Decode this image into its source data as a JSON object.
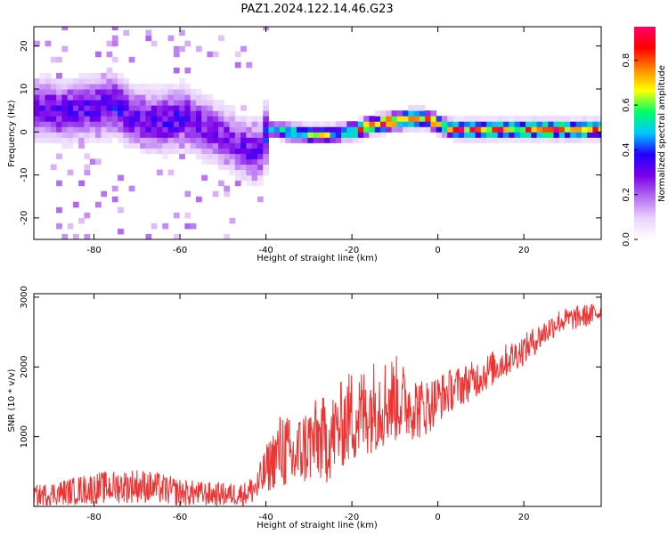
{
  "figure": {
    "title": "PAZ1.2024.122.14.46.G23"
  },
  "chart_data": [
    {
      "type": "heatmap",
      "title": "",
      "xlabel": "Height of straight line (km)",
      "ylabel": "Frequency (Hz)",
      "xlim": [
        -94,
        38
      ],
      "ylim": [
        -25,
        24.5
      ],
      "xticks": [
        -80,
        -60,
        -40,
        -20,
        0,
        20
      ],
      "yticks": [
        -20,
        -10,
        0,
        10,
        20
      ],
      "colorbar": {
        "label": "Normalized spectral amplitude",
        "range": [
          0,
          0.95
        ],
        "ticks": [
          0.0,
          0.2,
          0.4,
          0.6,
          0.8
        ],
        "colormap": [
          "#ffffff",
          "#e9d2fb",
          "#b46cf2",
          "#7a00e6",
          "#2200ff",
          "#00c8ff",
          "#00ff66",
          "#ffff00",
          "#ff8800",
          "#ff0000",
          "#ff0066"
        ]
      },
      "ridge": {
        "x": [
          -93,
          -88,
          -84,
          -80,
          -76,
          -72,
          -68,
          -64,
          -60,
          -56,
          -52,
          -48,
          -45,
          -42,
          -40,
          -36,
          -32,
          -28,
          -25,
          -22,
          -19,
          -16,
          -13,
          -10,
          -7,
          -4,
          -2,
          0,
          3,
          6,
          10,
          14,
          18,
          22,
          26,
          30,
          34,
          38
        ],
        "freq": [
          5,
          4,
          5,
          5,
          6,
          3,
          2,
          2,
          3,
          1,
          -1,
          -3,
          -5,
          -5,
          0,
          -0.5,
          -1,
          -1.2,
          -1,
          -0.5,
          0,
          1,
          1.5,
          2,
          2.5,
          2.5,
          2,
          1,
          0,
          0,
          0,
          0,
          0,
          0,
          0,
          0,
          0,
          0
        ],
        "amplitude": [
          0.28,
          0.32,
          0.3,
          0.33,
          0.34,
          0.3,
          0.3,
          0.33,
          0.32,
          0.28,
          0.26,
          0.27,
          0.3,
          0.27,
          0.4,
          0.5,
          0.6,
          0.65,
          0.55,
          0.55,
          0.7,
          0.75,
          0.85,
          0.8,
          0.8,
          0.8,
          0.7,
          0.7,
          0.75,
          0.8,
          0.82,
          0.78,
          0.75,
          0.8,
          0.85,
          0.82,
          0.8,
          0.75
        ]
      }
    },
    {
      "type": "line",
      "title": "",
      "xlabel": "Height of straight line (km)",
      "ylabel": "SNR (10 * v/v)",
      "xlim": [
        -94,
        38
      ],
      "ylim": [
        0,
        3050
      ],
      "xticks": [
        -80,
        -60,
        -40,
        -20,
        0,
        20
      ],
      "yticks": [
        1000,
        2000,
        3000
      ],
      "series": [
        {
          "color": "#ee3333",
          "x": [
            -94,
            -90,
            -85,
            -80,
            -75,
            -70,
            -65,
            -60,
            -55,
            -50,
            -45,
            -42,
            -40,
            -38,
            -36,
            -34,
            -32,
            -30,
            -28,
            -26,
            -24,
            -22,
            -20,
            -18,
            -16,
            -14,
            -12,
            -10,
            -8,
            -6,
            -4,
            -2,
            0,
            4,
            8,
            12,
            16,
            20,
            24,
            28,
            32,
            36,
            38
          ],
          "y": [
            150,
            180,
            220,
            260,
            280,
            300,
            260,
            200,
            180,
            170,
            180,
            280,
            520,
            700,
            850,
            650,
            800,
            900,
            950,
            950,
            1050,
            1200,
            1300,
            1300,
            1400,
            1500,
            1500,
            1550,
            1500,
            1450,
            1400,
            1450,
            1550,
            1700,
            1800,
            1950,
            2100,
            2250,
            2450,
            2650,
            2700,
            2750,
            2800
          ],
          "spread": [
            150,
            170,
            200,
            230,
            240,
            250,
            230,
            200,
            180,
            170,
            170,
            250,
            350,
            450,
            600,
            550,
            550,
            600,
            600,
            650,
            600,
            650,
            700,
            700,
            650,
            700,
            650,
            650,
            550,
            500,
            450,
            400,
            350,
            300,
            280,
            260,
            240,
            220,
            200,
            180,
            170,
            160,
            160
          ]
        }
      ]
    }
  ]
}
